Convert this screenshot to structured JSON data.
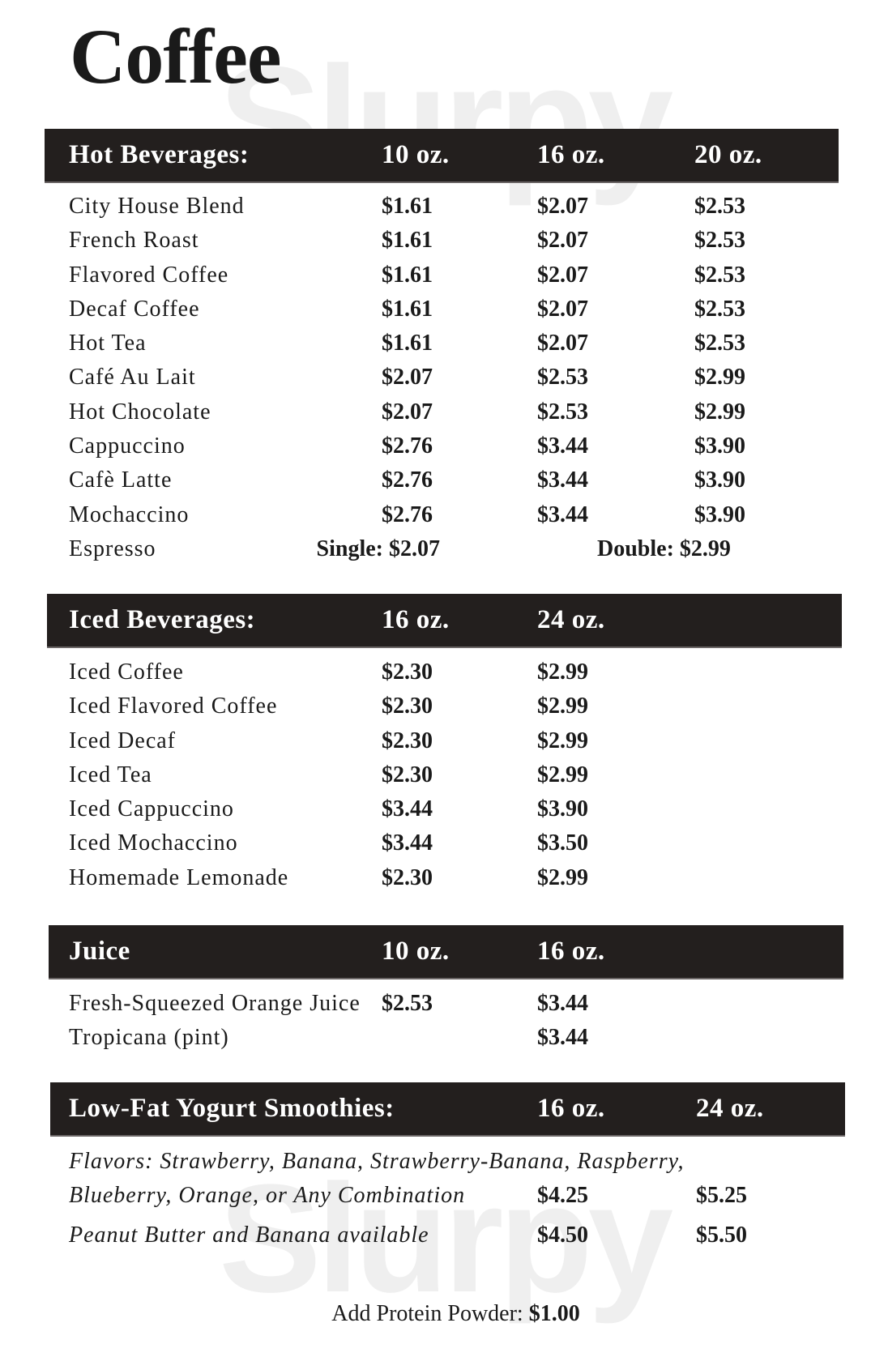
{
  "watermark": "Slurpy",
  "title": "Coffee",
  "sections": [
    {
      "heading": "Hot Beverages:",
      "sizes": [
        "10 oz.",
        "16 oz.",
        "20 oz."
      ],
      "items": [
        {
          "name": "City House Blend",
          "prices": [
            "$1.61",
            "$2.07",
            "$2.53"
          ]
        },
        {
          "name": "French Roast",
          "prices": [
            "$1.61",
            "$2.07",
            "$2.53"
          ]
        },
        {
          "name": "Flavored Coffee",
          "prices": [
            "$1.61",
            "$2.07",
            "$2.53"
          ]
        },
        {
          "name": "Decaf Coffee",
          "prices": [
            "$1.61",
            "$2.07",
            "$2.53"
          ]
        },
        {
          "name": "Hot Tea",
          "prices": [
            "$1.61",
            "$2.07",
            "$2.53"
          ]
        },
        {
          "name": "Café Au Lait",
          "prices": [
            "$2.07",
            "$2.53",
            "$2.99"
          ]
        },
        {
          "name": "Hot Chocolate",
          "prices": [
            "$2.07",
            "$2.53",
            "$2.99"
          ]
        },
        {
          "name": "Cappuccino",
          "prices": [
            "$2.76",
            "$3.44",
            "$3.90"
          ]
        },
        {
          "name": "Cafè  Latte",
          "prices": [
            "$2.76",
            "$3.44",
            "$3.90"
          ]
        },
        {
          "name": "Mochaccino",
          "prices": [
            "$2.76",
            "$3.44",
            "$3.90"
          ]
        }
      ],
      "espresso": {
        "name": "Espresso",
        "single": "Single: $2.07",
        "double": "Double: $2.99"
      }
    },
    {
      "heading": "Iced Beverages:",
      "sizes": [
        "16 oz.",
        "24 oz."
      ],
      "items": [
        {
          "name": "Iced Coffee",
          "prices": [
            "$2.30",
            "$2.99"
          ]
        },
        {
          "name": "Iced Flavored Coffee",
          "prices": [
            "$2.30",
            "$2.99"
          ]
        },
        {
          "name": "Iced Decaf",
          "prices": [
            "$2.30",
            "$2.99"
          ]
        },
        {
          "name": "Iced Tea",
          "prices": [
            "$2.30",
            "$2.99"
          ]
        },
        {
          "name": "Iced Cappuccino",
          "prices": [
            "$3.44",
            "$3.90"
          ]
        },
        {
          "name": "Iced Mochaccino",
          "prices": [
            "$3.44",
            "$3.50"
          ]
        },
        {
          "name": "Homemade Lemonade",
          "prices": [
            "$2.30",
            "$2.99"
          ]
        }
      ]
    },
    {
      "heading": "Juice",
      "sizes": [
        "10 oz.",
        "16 oz."
      ],
      "items": [
        {
          "name": "Fresh-Squeezed Orange Juice",
          "prices": [
            "$2.53",
            "$3.44"
          ]
        },
        {
          "name": "Tropicana (pint)",
          "prices": [
            "",
            "$3.44"
          ]
        }
      ]
    },
    {
      "heading": "Low-Fat Yogurt Smoothies:",
      "sizes": [
        "16 oz.",
        "24 oz."
      ],
      "items": [
        {
          "name": "Flavors: Strawberry, Banana, Strawberry-Banana, Raspberry,",
          "prices": [
            "",
            ""
          ]
        },
        {
          "name": "Blueberry, Orange, or Any Combination",
          "prices": [
            "$4.25",
            "$5.25"
          ]
        },
        {
          "name": "Peanut Butter and Banana available",
          "prices": [
            "$4.50",
            "$5.50"
          ]
        }
      ]
    }
  ],
  "protein": {
    "label": "Add Protein Powder:",
    "price": "$1.00"
  }
}
